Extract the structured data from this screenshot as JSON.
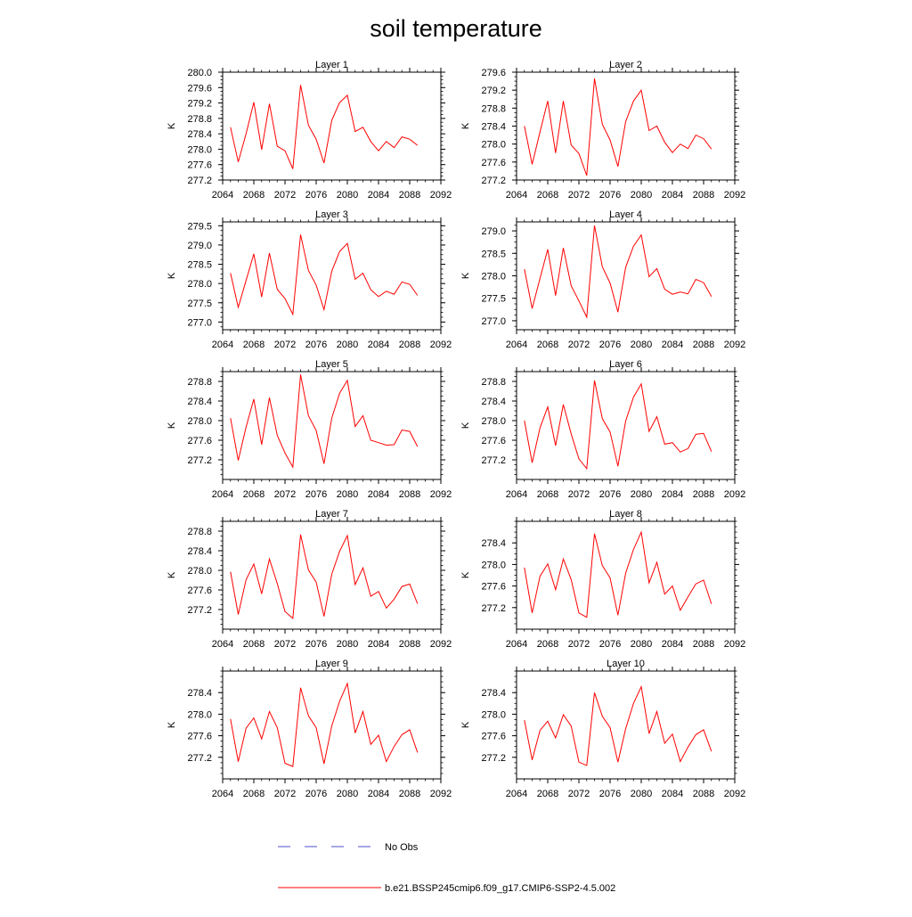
{
  "title": "soil temperature",
  "colors": {
    "model_line": "#ff0000",
    "obs_line": "#4d4dcc",
    "axis": "#000000"
  },
  "legend": {
    "obs_label": "No Obs",
    "model_label": "b.e21.BSSP245cmip6.f09_g17.CMIP6-SSP2-4.5.002"
  },
  "chart_data": [
    {
      "type": "line",
      "title": "Layer 1",
      "ylabel": "K",
      "xlim": [
        2064,
        2092
      ],
      "xticks": [
        "2064",
        "2068",
        "2072",
        "2076",
        "2080",
        "2084",
        "2088",
        "2092"
      ],
      "ylim": [
        277.2,
        280.0
      ],
      "yticks": [
        "277.2",
        "277.6",
        "278.0",
        "278.4",
        "278.8",
        "279.2",
        "279.6",
        "280.0"
      ],
      "x": [
        2065,
        2066,
        2067,
        2068,
        2069,
        2070,
        2071,
        2072,
        2073,
        2074,
        2075,
        2076,
        2077,
        2078,
        2079,
        2080,
        2081,
        2082,
        2083,
        2084,
        2085,
        2086,
        2087,
        2088,
        2089
      ],
      "series": [
        {
          "values": [
            278.57,
            277.67,
            278.4,
            279.22,
            277.99,
            279.18,
            278.08,
            277.96,
            277.49,
            279.67,
            278.62,
            278.26,
            277.64,
            278.75,
            279.21,
            279.4,
            278.46,
            278.57,
            278.2,
            277.96,
            278.2,
            278.04,
            278.32,
            278.26,
            278.1
          ]
        }
      ]
    },
    {
      "type": "line",
      "title": "Layer 2",
      "ylabel": "K",
      "xlim": [
        2064,
        2092
      ],
      "xticks": [
        "2064",
        "2068",
        "2072",
        "2076",
        "2080",
        "2084",
        "2088",
        "2092"
      ],
      "ylim": [
        277.2,
        279.6
      ],
      "yticks": [
        "277.2",
        "277.6",
        "278.0",
        "278.4",
        "278.8",
        "279.2",
        "279.6"
      ],
      "x": [
        2065,
        2066,
        2067,
        2068,
        2069,
        2070,
        2071,
        2072,
        2073,
        2074,
        2075,
        2076,
        2077,
        2078,
        2079,
        2080,
        2081,
        2082,
        2083,
        2084,
        2085,
        2086,
        2087,
        2088,
        2089
      ],
      "series": [
        {
          "values": [
            278.4,
            277.55,
            278.27,
            278.96,
            277.8,
            278.96,
            277.98,
            277.79,
            277.3,
            279.46,
            278.44,
            278.09,
            277.5,
            278.5,
            278.96,
            279.2,
            278.3,
            278.4,
            278.04,
            277.81,
            278.0,
            277.9,
            278.2,
            278.12,
            277.89
          ]
        }
      ]
    },
    {
      "type": "line",
      "title": "Layer 3",
      "ylabel": "K",
      "xlim": [
        2064,
        2092
      ],
      "xticks": [
        "2064",
        "2068",
        "2072",
        "2076",
        "2080",
        "2084",
        "2088",
        "2092"
      ],
      "ylim": [
        276.8,
        279.6
      ],
      "yticks": [
        "277.0",
        "277.5",
        "278.0",
        "278.5",
        "279.0",
        "279.5"
      ],
      "x": [
        2065,
        2066,
        2067,
        2068,
        2069,
        2070,
        2071,
        2072,
        2073,
        2074,
        2075,
        2076,
        2077,
        2078,
        2079,
        2080,
        2081,
        2082,
        2083,
        2084,
        2085,
        2086,
        2087,
        2088,
        2089
      ],
      "series": [
        {
          "values": [
            278.27,
            277.38,
            278.08,
            278.77,
            277.65,
            278.79,
            277.85,
            277.61,
            277.2,
            279.27,
            278.34,
            277.96,
            277.32,
            278.32,
            278.83,
            279.04,
            278.11,
            278.27,
            277.84,
            277.66,
            277.8,
            277.72,
            278.04,
            277.98,
            277.69
          ]
        }
      ]
    },
    {
      "type": "line",
      "title": "Layer 4",
      "ylabel": "K",
      "xlim": [
        2064,
        2092
      ],
      "xticks": [
        "2064",
        "2068",
        "2072",
        "2076",
        "2080",
        "2084",
        "2088",
        "2092"
      ],
      "ylim": [
        276.8,
        279.2
      ],
      "yticks": [
        "277.0",
        "277.5",
        "278.0",
        "278.5",
        "279.0"
      ],
      "x": [
        2065,
        2066,
        2067,
        2068,
        2069,
        2070,
        2071,
        2072,
        2073,
        2074,
        2075,
        2076,
        2077,
        2078,
        2079,
        2080,
        2081,
        2082,
        2083,
        2084,
        2085,
        2086,
        2087,
        2088,
        2089
      ],
      "series": [
        {
          "values": [
            278.15,
            277.27,
            277.94,
            278.59,
            277.56,
            278.62,
            277.78,
            277.44,
            277.08,
            279.12,
            278.2,
            277.84,
            277.19,
            278.19,
            278.66,
            278.91,
            277.98,
            278.16,
            277.7,
            277.59,
            277.64,
            277.6,
            277.92,
            277.85,
            277.54
          ]
        }
      ]
    },
    {
      "type": "line",
      "title": "Layer 5",
      "ylabel": "K",
      "xlim": [
        2064,
        2092
      ],
      "xticks": [
        "2064",
        "2068",
        "2072",
        "2076",
        "2080",
        "2084",
        "2088",
        "2092"
      ],
      "ylim": [
        276.8,
        279.0
      ],
      "yticks": [
        "277.2",
        "277.6",
        "278.0",
        "278.4",
        "278.8"
      ],
      "x": [
        2065,
        2066,
        2067,
        2068,
        2069,
        2070,
        2071,
        2072,
        2073,
        2074,
        2075,
        2076,
        2077,
        2078,
        2079,
        2080,
        2081,
        2082,
        2083,
        2084,
        2085,
        2086,
        2087,
        2088,
        2089
      ],
      "series": [
        {
          "values": [
            278.05,
            277.19,
            277.87,
            278.44,
            277.51,
            278.47,
            277.7,
            277.34,
            277.05,
            278.94,
            278.1,
            277.8,
            277.12,
            278.05,
            278.56,
            278.82,
            277.88,
            278.1,
            277.6,
            277.55,
            277.5,
            277.51,
            277.81,
            277.78,
            277.47
          ]
        }
      ]
    },
    {
      "type": "line",
      "title": "Layer 6",
      "ylabel": "K",
      "xlim": [
        2064,
        2092
      ],
      "xticks": [
        "2064",
        "2068",
        "2072",
        "2076",
        "2080",
        "2084",
        "2088",
        "2092"
      ],
      "ylim": [
        276.8,
        279.0
      ],
      "yticks": [
        "277.2",
        "277.6",
        "278.0",
        "278.4",
        "278.8"
      ],
      "x": [
        2065,
        2066,
        2067,
        2068,
        2069,
        2070,
        2071,
        2072,
        2073,
        2074,
        2075,
        2076,
        2077,
        2078,
        2079,
        2080,
        2081,
        2082,
        2083,
        2084,
        2085,
        2086,
        2087,
        2088,
        2089
      ],
      "series": [
        {
          "values": [
            278.0,
            277.14,
            277.85,
            278.28,
            277.49,
            278.33,
            277.73,
            277.22,
            277.02,
            278.82,
            278.04,
            277.77,
            277.07,
            277.99,
            278.48,
            278.75,
            277.78,
            278.08,
            277.52,
            277.55,
            277.36,
            277.43,
            277.72,
            277.74,
            277.37
          ]
        }
      ]
    },
    {
      "type": "line",
      "title": "Layer 7",
      "ylabel": "K",
      "xlim": [
        2064,
        2092
      ],
      "xticks": [
        "2064",
        "2068",
        "2072",
        "2076",
        "2080",
        "2084",
        "2088",
        "2092"
      ],
      "ylim": [
        276.8,
        279.0
      ],
      "yticks": [
        "277.2",
        "277.6",
        "278.0",
        "278.4",
        "278.8"
      ],
      "x": [
        2065,
        2066,
        2067,
        2068,
        2069,
        2070,
        2071,
        2072,
        2073,
        2074,
        2075,
        2076,
        2077,
        2078,
        2079,
        2080,
        2081,
        2082,
        2083,
        2084,
        2085,
        2086,
        2087,
        2088,
        2089
      ],
      "series": [
        {
          "values": [
            277.97,
            277.1,
            277.81,
            278.13,
            277.52,
            278.23,
            277.73,
            277.16,
            277.02,
            278.73,
            278.01,
            277.76,
            277.06,
            277.92,
            278.39,
            278.71,
            277.71,
            278.05,
            277.47,
            277.57,
            277.23,
            277.41,
            277.67,
            277.72,
            277.32
          ]
        }
      ]
    },
    {
      "type": "line",
      "title": "Layer 8",
      "ylabel": "K",
      "xlim": [
        2064,
        2092
      ],
      "xticks": [
        "2064",
        "2068",
        "2072",
        "2076",
        "2080",
        "2084",
        "2088",
        "2092"
      ],
      "ylim": [
        276.8,
        278.8
      ],
      "yticks": [
        "277.2",
        "277.6",
        "278.0",
        "278.4"
      ],
      "x": [
        2065,
        2066,
        2067,
        2068,
        2069,
        2070,
        2071,
        2072,
        2073,
        2074,
        2075,
        2076,
        2077,
        2078,
        2079,
        2080,
        2081,
        2082,
        2083,
        2084,
        2085,
        2086,
        2087,
        2088,
        2089
      ],
      "series": [
        {
          "values": [
            277.94,
            277.1,
            277.78,
            278.01,
            277.53,
            278.1,
            277.72,
            277.1,
            277.02,
            278.57,
            277.98,
            277.75,
            277.06,
            277.84,
            278.28,
            278.6,
            277.66,
            278.04,
            277.45,
            277.6,
            277.15,
            277.4,
            277.64,
            277.71,
            277.27
          ]
        }
      ]
    },
    {
      "type": "line",
      "title": "Layer 9",
      "ylabel": "K",
      "xlim": [
        2064,
        2092
      ],
      "xticks": [
        "2064",
        "2068",
        "2072",
        "2076",
        "2080",
        "2084",
        "2088",
        "2092"
      ],
      "ylim": [
        276.8,
        278.8
      ],
      "yticks": [
        "277.2",
        "277.6",
        "278.0",
        "278.4"
      ],
      "x": [
        2065,
        2066,
        2067,
        2068,
        2069,
        2070,
        2071,
        2072,
        2073,
        2074,
        2075,
        2076,
        2077,
        2078,
        2079,
        2080,
        2081,
        2082,
        2083,
        2084,
        2085,
        2086,
        2087,
        2088,
        2089
      ],
      "series": [
        {
          "values": [
            277.91,
            277.12,
            277.74,
            277.93,
            277.54,
            278.05,
            277.75,
            277.09,
            277.03,
            278.49,
            277.97,
            277.75,
            277.08,
            277.78,
            278.24,
            278.57,
            277.65,
            278.05,
            277.44,
            277.61,
            277.12,
            277.4,
            277.62,
            277.71,
            277.29
          ]
        }
      ]
    },
    {
      "type": "line",
      "title": "Layer 10",
      "ylabel": "K",
      "xlim": [
        2064,
        2092
      ],
      "xticks": [
        "2064",
        "2068",
        "2072",
        "2076",
        "2080",
        "2084",
        "2088",
        "2092"
      ],
      "ylim": [
        276.8,
        278.8
      ],
      "yticks": [
        "277.2",
        "277.6",
        "278.0",
        "278.4"
      ],
      "x": [
        2065,
        2066,
        2067,
        2068,
        2069,
        2070,
        2071,
        2072,
        2073,
        2074,
        2075,
        2076,
        2077,
        2078,
        2079,
        2080,
        2081,
        2082,
        2083,
        2084,
        2085,
        2086,
        2087,
        2088,
        2089
      ],
      "series": [
        {
          "values": [
            277.89,
            277.15,
            277.7,
            277.87,
            277.56,
            277.99,
            277.78,
            277.11,
            277.05,
            278.4,
            277.96,
            277.75,
            277.11,
            277.73,
            278.2,
            278.51,
            277.64,
            278.05,
            277.46,
            277.63,
            277.12,
            277.39,
            277.62,
            277.71,
            277.31
          ]
        }
      ]
    }
  ]
}
